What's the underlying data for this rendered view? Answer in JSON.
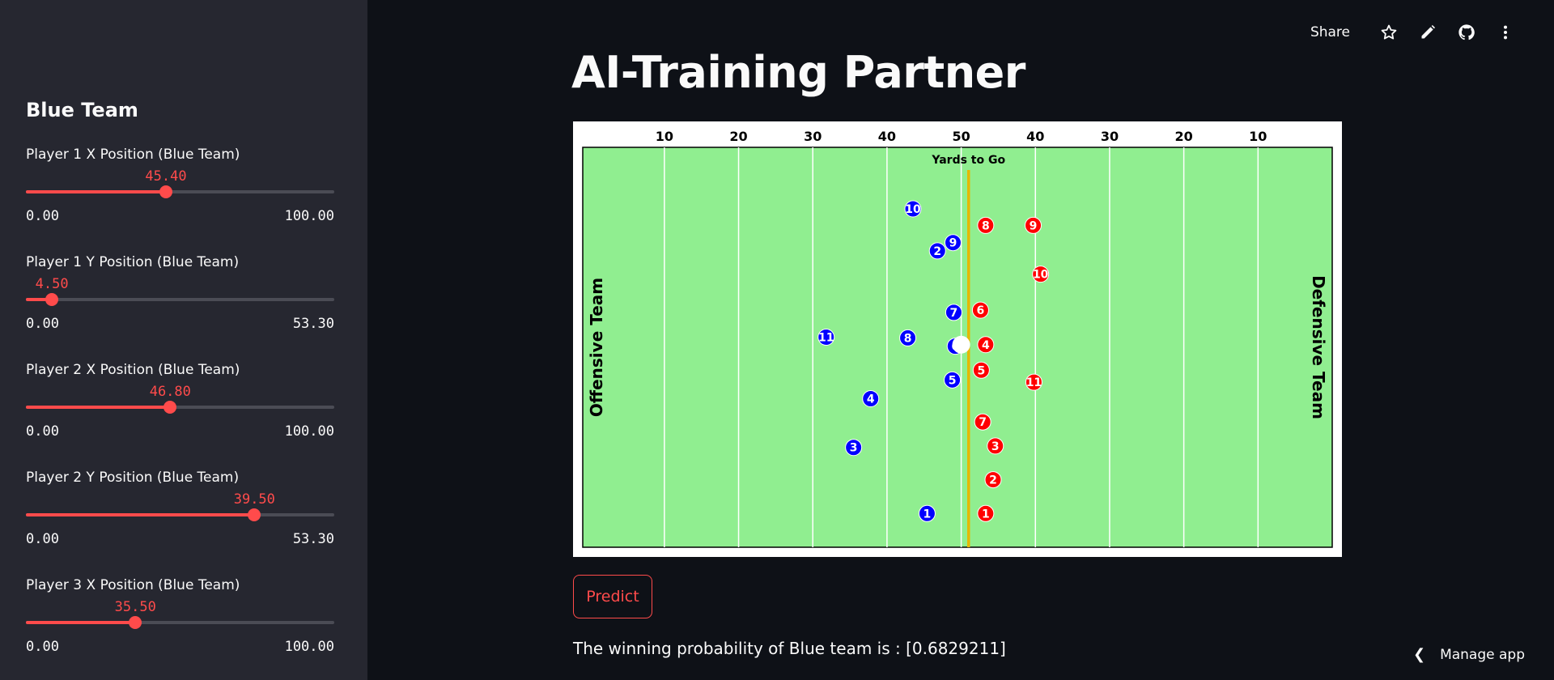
{
  "header": {
    "share_label": "Share",
    "icons": [
      "star-icon",
      "pencil-icon",
      "github-icon",
      "more-vert-icon"
    ]
  },
  "sidebar": {
    "title": "Blue Team",
    "sliders": [
      {
        "label": "Player 1 X Position (Blue Team)",
        "value": "45.40",
        "min": "0.00",
        "max": "100.00",
        "fraction": 0.454
      },
      {
        "label": "Player 1 Y Position (Blue Team)",
        "value": "4.50",
        "min": "0.00",
        "max": "53.30",
        "fraction": 0.0844
      },
      {
        "label": "Player 2 X Position (Blue Team)",
        "value": "46.80",
        "min": "0.00",
        "max": "100.00",
        "fraction": 0.468
      },
      {
        "label": "Player 2 Y Position (Blue Team)",
        "value": "39.50",
        "min": "0.00",
        "max": "53.30",
        "fraction": 0.741
      },
      {
        "label": "Player 3 X Position (Blue Team)",
        "value": "35.50",
        "min": "0.00",
        "max": "100.00",
        "fraction": 0.355
      }
    ]
  },
  "main": {
    "title": "AI-Training Partner",
    "predict_label": "Predict",
    "result": "The winning probability of Blue team is : [0.6829211]"
  },
  "footer": {
    "manage_label": "Manage app"
  },
  "colors": {
    "accent": "#ff4b4b",
    "field": "#90ee90",
    "blue_team": "#0000ff",
    "red_team": "#ff0000",
    "line_of_scrimmage": "#e6b800"
  },
  "field": {
    "yard_labels": [
      "10",
      "20",
      "30",
      "40",
      "50",
      "40",
      "30",
      "20",
      "10"
    ],
    "yards_to_go_label": "Yards to Go",
    "offense_label": "Offensive Team",
    "defense_label": "Defensive Team",
    "scrimmage_yard": 51,
    "ball": {
      "x": 50,
      "y": 27
    },
    "blue_players": [
      {
        "n": "1",
        "x": 45.4,
        "y": 4.5
      },
      {
        "n": "2",
        "x": 46.8,
        "y": 39.5
      },
      {
        "n": "3",
        "x": 35.5,
        "y": 13.3
      },
      {
        "n": "4",
        "x": 37.8,
        "y": 19.8
      },
      {
        "n": "5",
        "x": 48.8,
        "y": 22.3
      },
      {
        "n": "6",
        "x": 49.2,
        "y": 26.8
      },
      {
        "n": "7",
        "x": 49.0,
        "y": 31.3
      },
      {
        "n": "8",
        "x": 42.8,
        "y": 27.9
      },
      {
        "n": "9",
        "x": 48.9,
        "y": 40.6
      },
      {
        "n": "10",
        "x": 43.5,
        "y": 45.1
      },
      {
        "n": "11",
        "x": 31.8,
        "y": 28.0
      }
    ],
    "red_players": [
      {
        "n": "1",
        "x": 53.3,
        "y": 4.5
      },
      {
        "n": "2",
        "x": 54.3,
        "y": 9.0
      },
      {
        "n": "3",
        "x": 54.6,
        "y": 13.5
      },
      {
        "n": "4",
        "x": 53.3,
        "y": 27.0
      },
      {
        "n": "5",
        "x": 52.7,
        "y": 23.6
      },
      {
        "n": "6",
        "x": 52.6,
        "y": 31.6
      },
      {
        "n": "7",
        "x": 52.9,
        "y": 16.7
      },
      {
        "n": "8",
        "x": 53.3,
        "y": 42.9
      },
      {
        "n": "9",
        "x": 59.7,
        "y": 42.9
      },
      {
        "n": "10",
        "x": 60.7,
        "y": 36.4
      },
      {
        "n": "11",
        "x": 59.8,
        "y": 22.0
      }
    ]
  }
}
